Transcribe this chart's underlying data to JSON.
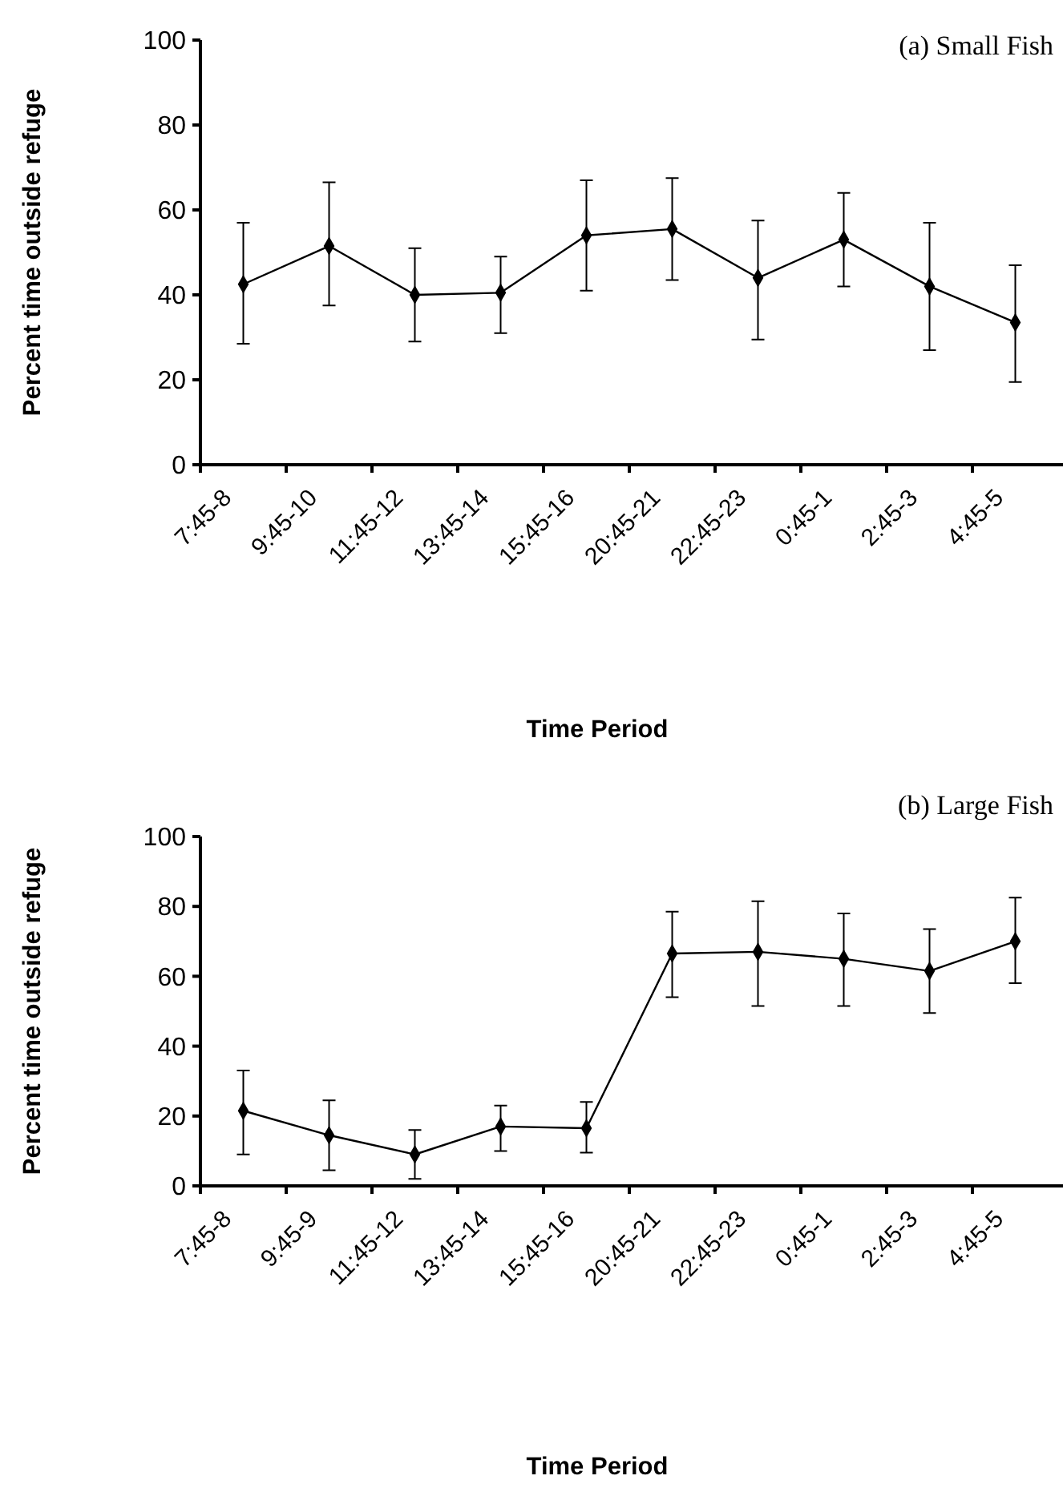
{
  "chart_data": [
    {
      "type": "line",
      "title": "(a) Small Fish",
      "xlabel": "Time Period",
      "ylabel": "Percent time outside refuge",
      "categories": [
        "7:45-8",
        "9:45-10",
        "11:45-12",
        "13:45-14",
        "15:45-16",
        "20:45-21",
        "22:45-23",
        "0:45-1",
        "2:45-3",
        "4:45-5"
      ],
      "ylim": [
        0,
        100
      ],
      "yticks": [
        0,
        20,
        40,
        60,
        80,
        100
      ],
      "grid": false,
      "marker": "diamond",
      "line_style": "solid",
      "series": [
        {
          "color": "#000000",
          "values": [
            42.5,
            51.5,
            40,
            40.5,
            54,
            55.5,
            44,
            53,
            42,
            33.5
          ],
          "errors": [
            [
              28.5,
              57
            ],
            [
              37.5,
              66.5
            ],
            [
              29,
              51
            ],
            [
              31,
              49
            ],
            [
              41,
              67
            ],
            [
              43.5,
              67.5
            ],
            [
              29.5,
              57.5
            ],
            [
              42,
              64
            ],
            [
              27,
              57
            ],
            [
              19.5,
              47
            ]
          ]
        }
      ]
    },
    {
      "type": "line",
      "title": "(b) Large Fish",
      "xlabel": "Time Period",
      "ylabel": "Percent time outside refuge",
      "categories": [
        "7:45-8",
        "9:45-9",
        "11:45-12",
        "13:45-14",
        "15:45-16",
        "20:45-21",
        "22:45-23",
        "0:45-1",
        "2:45-3",
        "4:45-5"
      ],
      "ylim": [
        0,
        100
      ],
      "yticks": [
        0,
        20,
        40,
        60,
        80,
        100
      ],
      "grid": false,
      "marker": "diamond",
      "line_style": "solid",
      "series": [
        {
          "color": "#000000",
          "values": [
            21.5,
            14.5,
            9,
            17,
            16.5,
            66.5,
            67,
            65,
            61.5,
            70
          ],
          "errors": [
            [
              9,
              33
            ],
            [
              4.5,
              24.5
            ],
            [
              2,
              16
            ],
            [
              10,
              23
            ],
            [
              9.5,
              24
            ],
            [
              54,
              78.5
            ],
            [
              51.5,
              81.5
            ],
            [
              51.5,
              78
            ],
            [
              49.5,
              73.5
            ],
            [
              58,
              82.5
            ]
          ]
        }
      ]
    }
  ]
}
